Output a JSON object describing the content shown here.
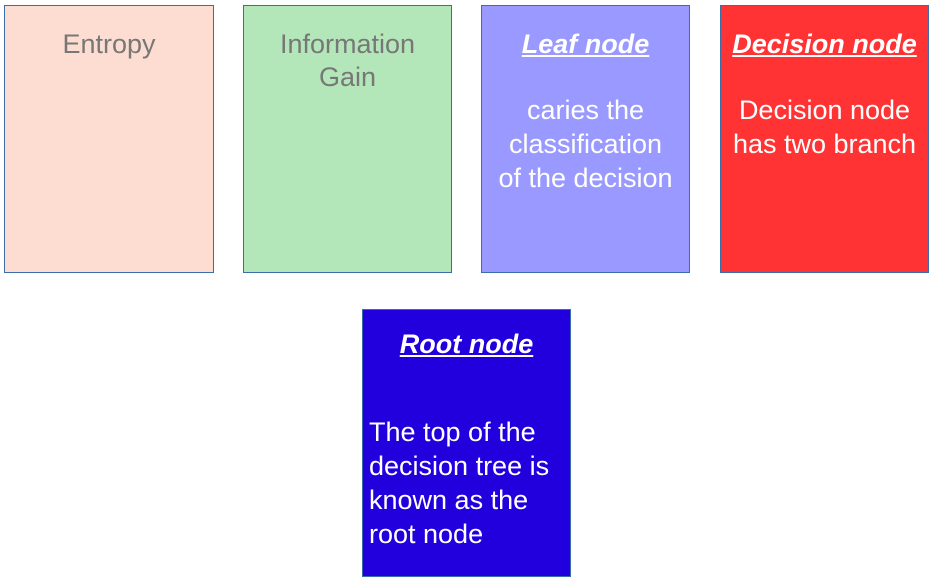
{
  "cards": {
    "entropy": {
      "title": "Entropy",
      "color": "#fdddd2",
      "text_color": "#777777"
    },
    "information_gain": {
      "title": "Information\nGain",
      "color": "#b3e6b8",
      "text_color": "#777777"
    },
    "leaf_node": {
      "title": "Leaf node",
      "body": "caries the\nclassification\nof the decision",
      "color": "#9999ff",
      "text_color": "#ffffff"
    },
    "decision_node": {
      "title": "Decision node",
      "body": "Decision node\nhas two branch",
      "color": "#ff3333",
      "text_color": "#ffffff"
    },
    "root_node": {
      "title": "Root node",
      "body": "The top of the\ndecision tree is\nknown as the\nroot node",
      "color": "#2200dd",
      "text_color": "#ffffff"
    }
  }
}
